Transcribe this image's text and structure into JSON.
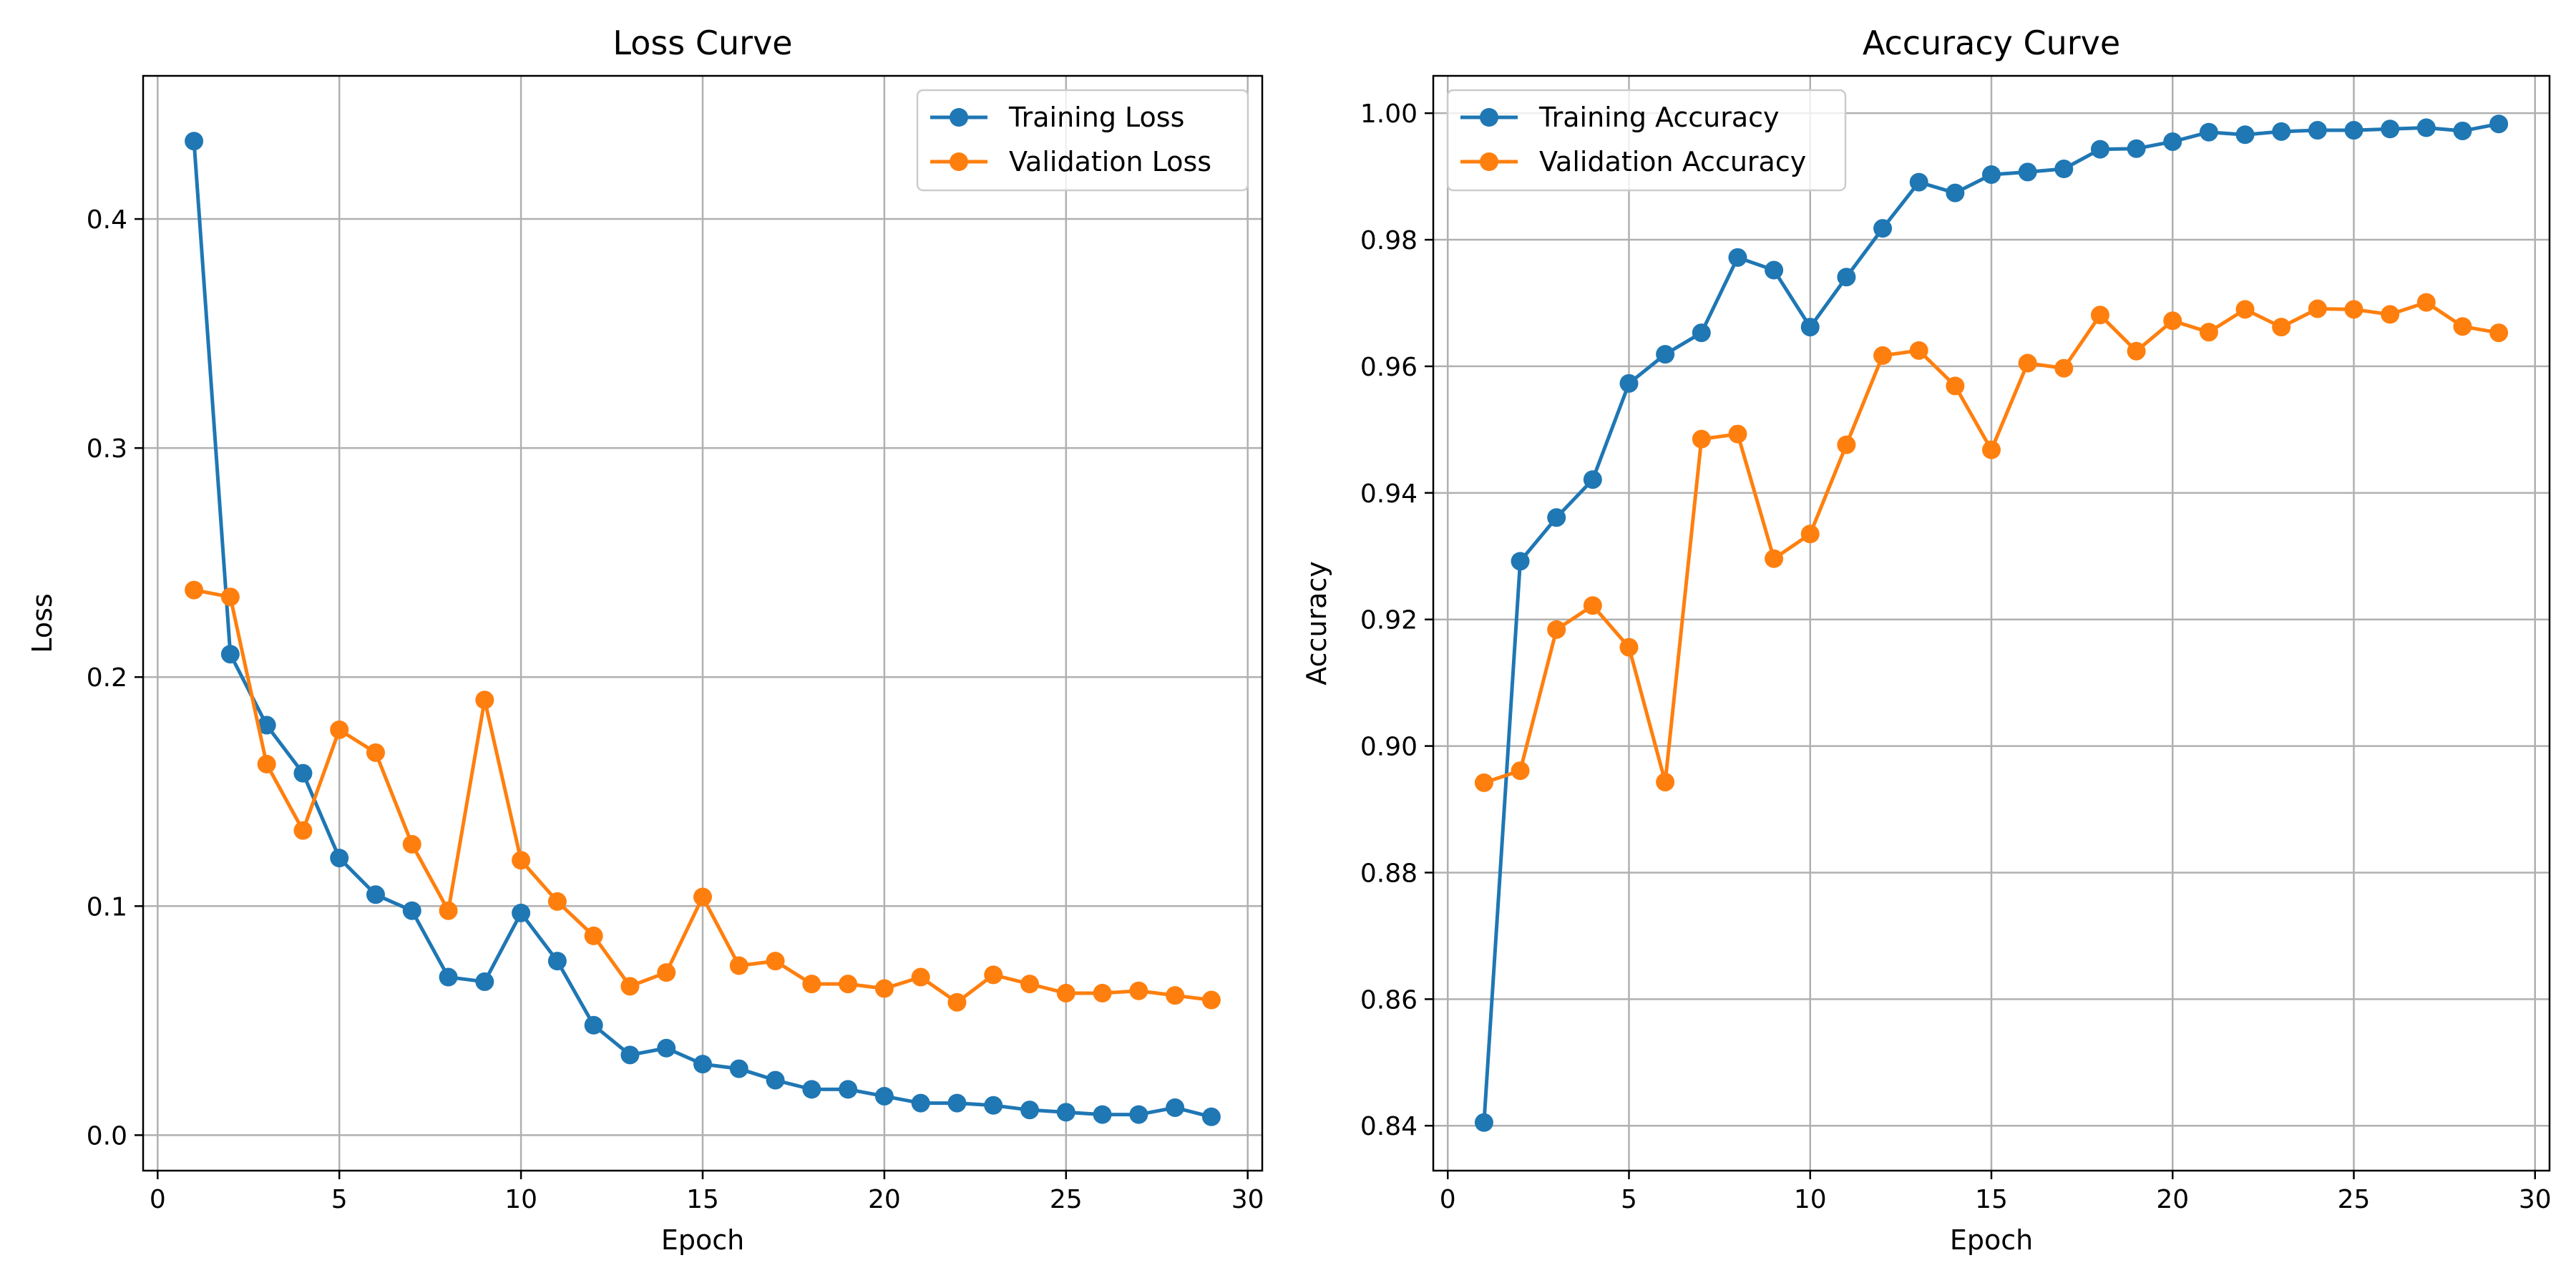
{
  "chart_data": [
    {
      "type": "line",
      "title": "Loss Curve",
      "xlabel": "Epoch",
      "ylabel": "Loss",
      "x": [
        1,
        2,
        3,
        4,
        5,
        6,
        7,
        8,
        9,
        10,
        11,
        12,
        13,
        14,
        15,
        16,
        17,
        18,
        19,
        20,
        21,
        22,
        23,
        24,
        25,
        26,
        27,
        28,
        29
      ],
      "xlim": [
        -0.4,
        30.4
      ],
      "ylim": [
        -0.0155,
        0.4625
      ],
      "xticks": [
        0,
        5,
        10,
        15,
        20,
        25,
        30
      ],
      "xtick_labels": [
        "0",
        "5",
        "10",
        "15",
        "20",
        "25",
        "30"
      ],
      "yticks": [
        0.0,
        0.1,
        0.2,
        0.3,
        0.4
      ],
      "ytick_labels": [
        "0.0",
        "0.1",
        "0.2",
        "0.3",
        "0.4"
      ],
      "grid": true,
      "legend_position": "top-right",
      "series": [
        {
          "name": "Training Loss",
          "color": "#1f77b4",
          "values": [
            0.434,
            0.21,
            0.179,
            0.158,
            0.121,
            0.105,
            0.098,
            0.069,
            0.067,
            0.097,
            0.076,
            0.048,
            0.035,
            0.038,
            0.031,
            0.029,
            0.024,
            0.02,
            0.02,
            0.017,
            0.014,
            0.014,
            0.013,
            0.011,
            0.01,
            0.009,
            0.009,
            0.012,
            0.008
          ]
        },
        {
          "name": "Validation Loss",
          "color": "#ff7f0e",
          "values": [
            0.238,
            0.235,
            0.162,
            0.133,
            0.177,
            0.167,
            0.127,
            0.098,
            0.19,
            0.12,
            0.102,
            0.087,
            0.065,
            0.071,
            0.104,
            0.074,
            0.076,
            0.066,
            0.066,
            0.064,
            0.069,
            0.058,
            0.07,
            0.066,
            0.062,
            0.062,
            0.063,
            0.061,
            0.059
          ]
        }
      ]
    },
    {
      "type": "line",
      "title": "Accuracy Curve",
      "xlabel": "Epoch",
      "ylabel": "Accuracy",
      "x": [
        1,
        2,
        3,
        4,
        5,
        6,
        7,
        8,
        9,
        10,
        11,
        12,
        13,
        14,
        15,
        16,
        17,
        18,
        19,
        20,
        21,
        22,
        23,
        24,
        25,
        26,
        27,
        28,
        29
      ],
      "xlim": [
        -0.4,
        30.4
      ],
      "ylim": [
        0.8329,
        1.0059
      ],
      "xticks": [
        0,
        5,
        10,
        15,
        20,
        25,
        30
      ],
      "xtick_labels": [
        "0",
        "5",
        "10",
        "15",
        "20",
        "25",
        "30"
      ],
      "yticks": [
        0.84,
        0.86,
        0.88,
        0.9,
        0.92,
        0.94,
        0.96,
        0.98,
        1.0
      ],
      "ytick_labels": [
        "0.84",
        "0.86",
        "0.88",
        "0.90",
        "0.92",
        "0.94",
        "0.96",
        "0.98",
        "1.00"
      ],
      "grid": true,
      "legend_position": "top-left",
      "series": [
        {
          "name": "Training Accuracy",
          "color": "#1f77b4",
          "values": [
            0.8405,
            0.9292,
            0.9361,
            0.9421,
            0.9573,
            0.9619,
            0.9653,
            0.9772,
            0.9752,
            0.9662,
            0.9741,
            0.9818,
            0.9891,
            0.9874,
            0.9903,
            0.9907,
            0.9912,
            0.9943,
            0.9944,
            0.9955,
            0.997,
            0.9966,
            0.9971,
            0.9973,
            0.9973,
            0.9975,
            0.9977,
            0.9972,
            0.9983
          ]
        },
        {
          "name": "Validation Accuracy",
          "color": "#ff7f0e",
          "values": [
            0.8942,
            0.8961,
            0.9184,
            0.9222,
            0.9156,
            0.8943,
            0.9485,
            0.9493,
            0.9296,
            0.9335,
            0.9476,
            0.9617,
            0.9625,
            0.9569,
            0.9468,
            0.9605,
            0.9597,
            0.9681,
            0.9624,
            0.9672,
            0.9654,
            0.969,
            0.9662,
            0.9691,
            0.969,
            0.9682,
            0.9701,
            0.9663,
            0.9653
          ]
        }
      ]
    }
  ]
}
